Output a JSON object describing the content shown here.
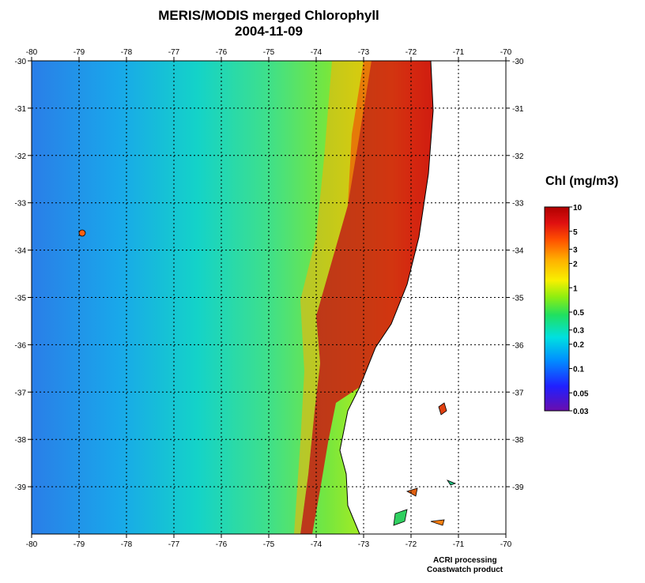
{
  "header": {
    "title": "MERIS/MODIS merged Chlorophyll",
    "date": "2004-11-09"
  },
  "map": {
    "lon_range": [
      -80,
      -70
    ],
    "lat_range": [
      -40,
      -30
    ],
    "lon_ticks": [
      "-80",
      "-79",
      "-78",
      "-77",
      "-76",
      "-75",
      "-74",
      "-73",
      "-72",
      "-71",
      "-70"
    ],
    "lat_ticks": [
      "-30",
      "-31",
      "-32",
      "-33",
      "-34",
      "-35",
      "-36",
      "-37",
      "-38",
      "-39"
    ],
    "grid": "dotted",
    "land_color": "#ffffff",
    "coast_color": "#000000"
  },
  "colorbar": {
    "title": "Chl (mg/m3)",
    "labels": [
      "10",
      "5",
      "3",
      "2",
      "1",
      "0.5",
      "0.3",
      "0.2",
      "0.1",
      "0.05",
      "0.03"
    ],
    "colors": [
      "#6a0dad",
      "#1a1aff",
      "#0090ff",
      "#00e0e0",
      "#20e060",
      "#90ee10",
      "#f8f000",
      "#ffb000",
      "#ff5000",
      "#e01010",
      "#b00000"
    ]
  },
  "footer": {
    "line1": "ACRI processing",
    "line2": "Coastwatch product"
  }
}
